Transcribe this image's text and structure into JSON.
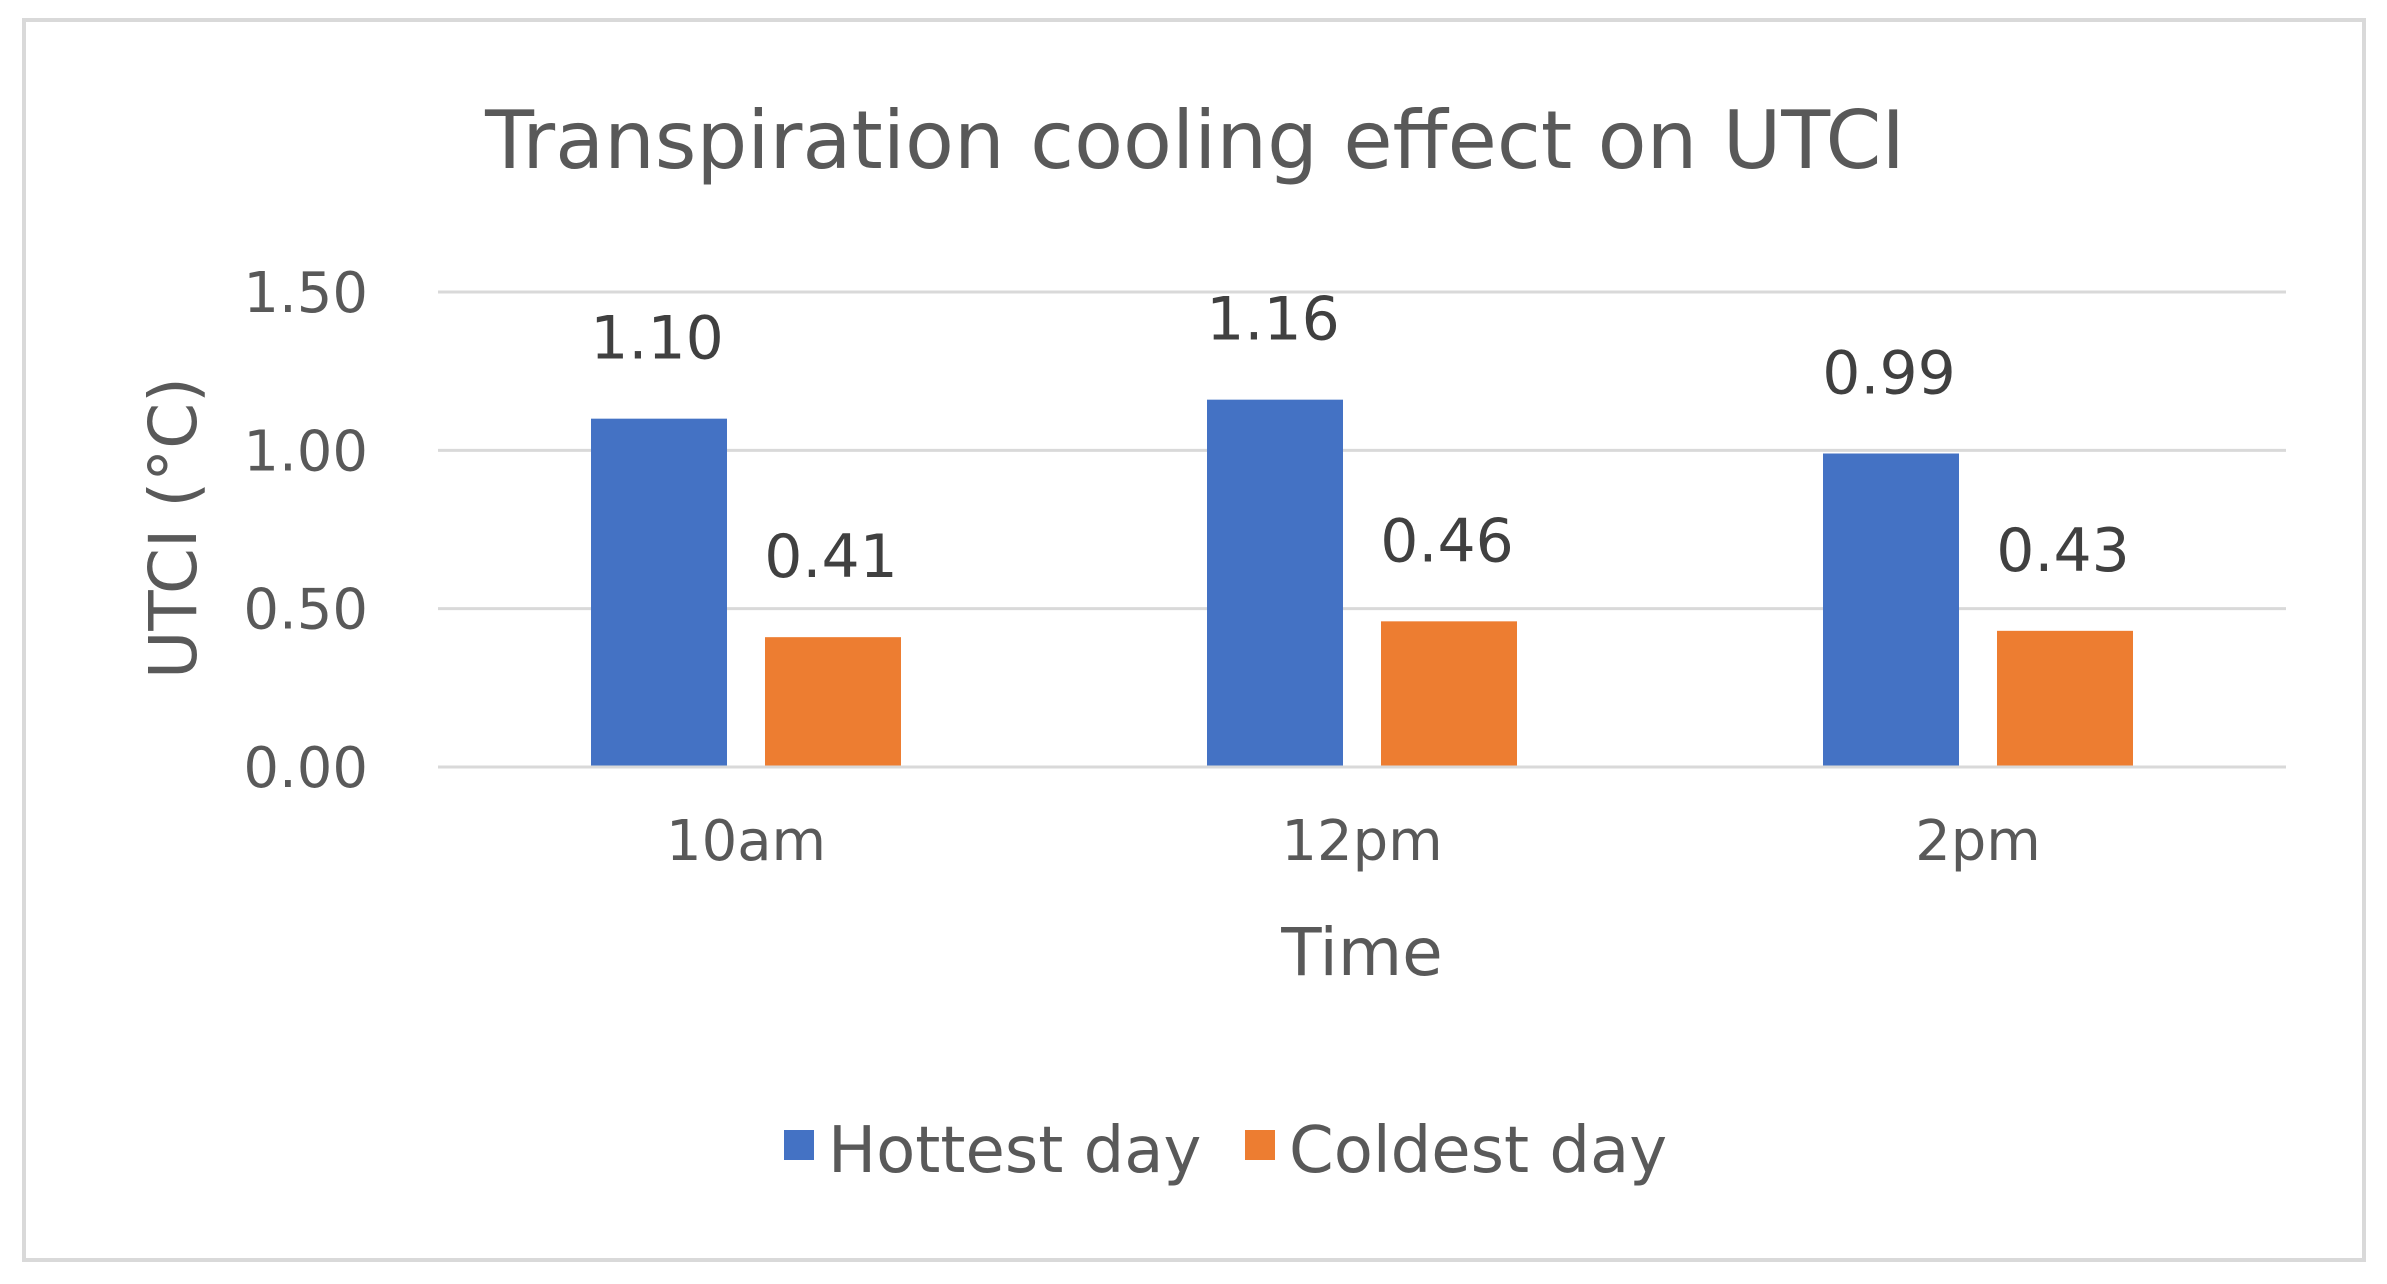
{
  "chart_data": {
    "type": "bar",
    "title": "Transpiration cooling effect on UTCI",
    "xlabel": "Time",
    "ylabel": "UTCI (°C)",
    "categories": [
      "10am",
      "12pm",
      "2pm"
    ],
    "series": [
      {
        "name": "Hottest day",
        "color": "#4472C4",
        "values": [
          1.1,
          1.16,
          0.99
        ],
        "labels": [
          "1.10",
          "1.16",
          "0.99"
        ]
      },
      {
        "name": "Coldest day",
        "color": "#ED7D31",
        "values": [
          0.41,
          0.46,
          0.43
        ],
        "labels": [
          "0.41",
          "0.46",
          "0.43"
        ]
      }
    ],
    "ylim": [
      0,
      1.5
    ],
    "yticks": [
      0,
      0.5,
      1.0,
      1.5
    ],
    "ytick_labels": [
      "0.00",
      "0.50",
      "1.00",
      "1.50"
    ],
    "grid": true,
    "legend_position": "bottom"
  }
}
